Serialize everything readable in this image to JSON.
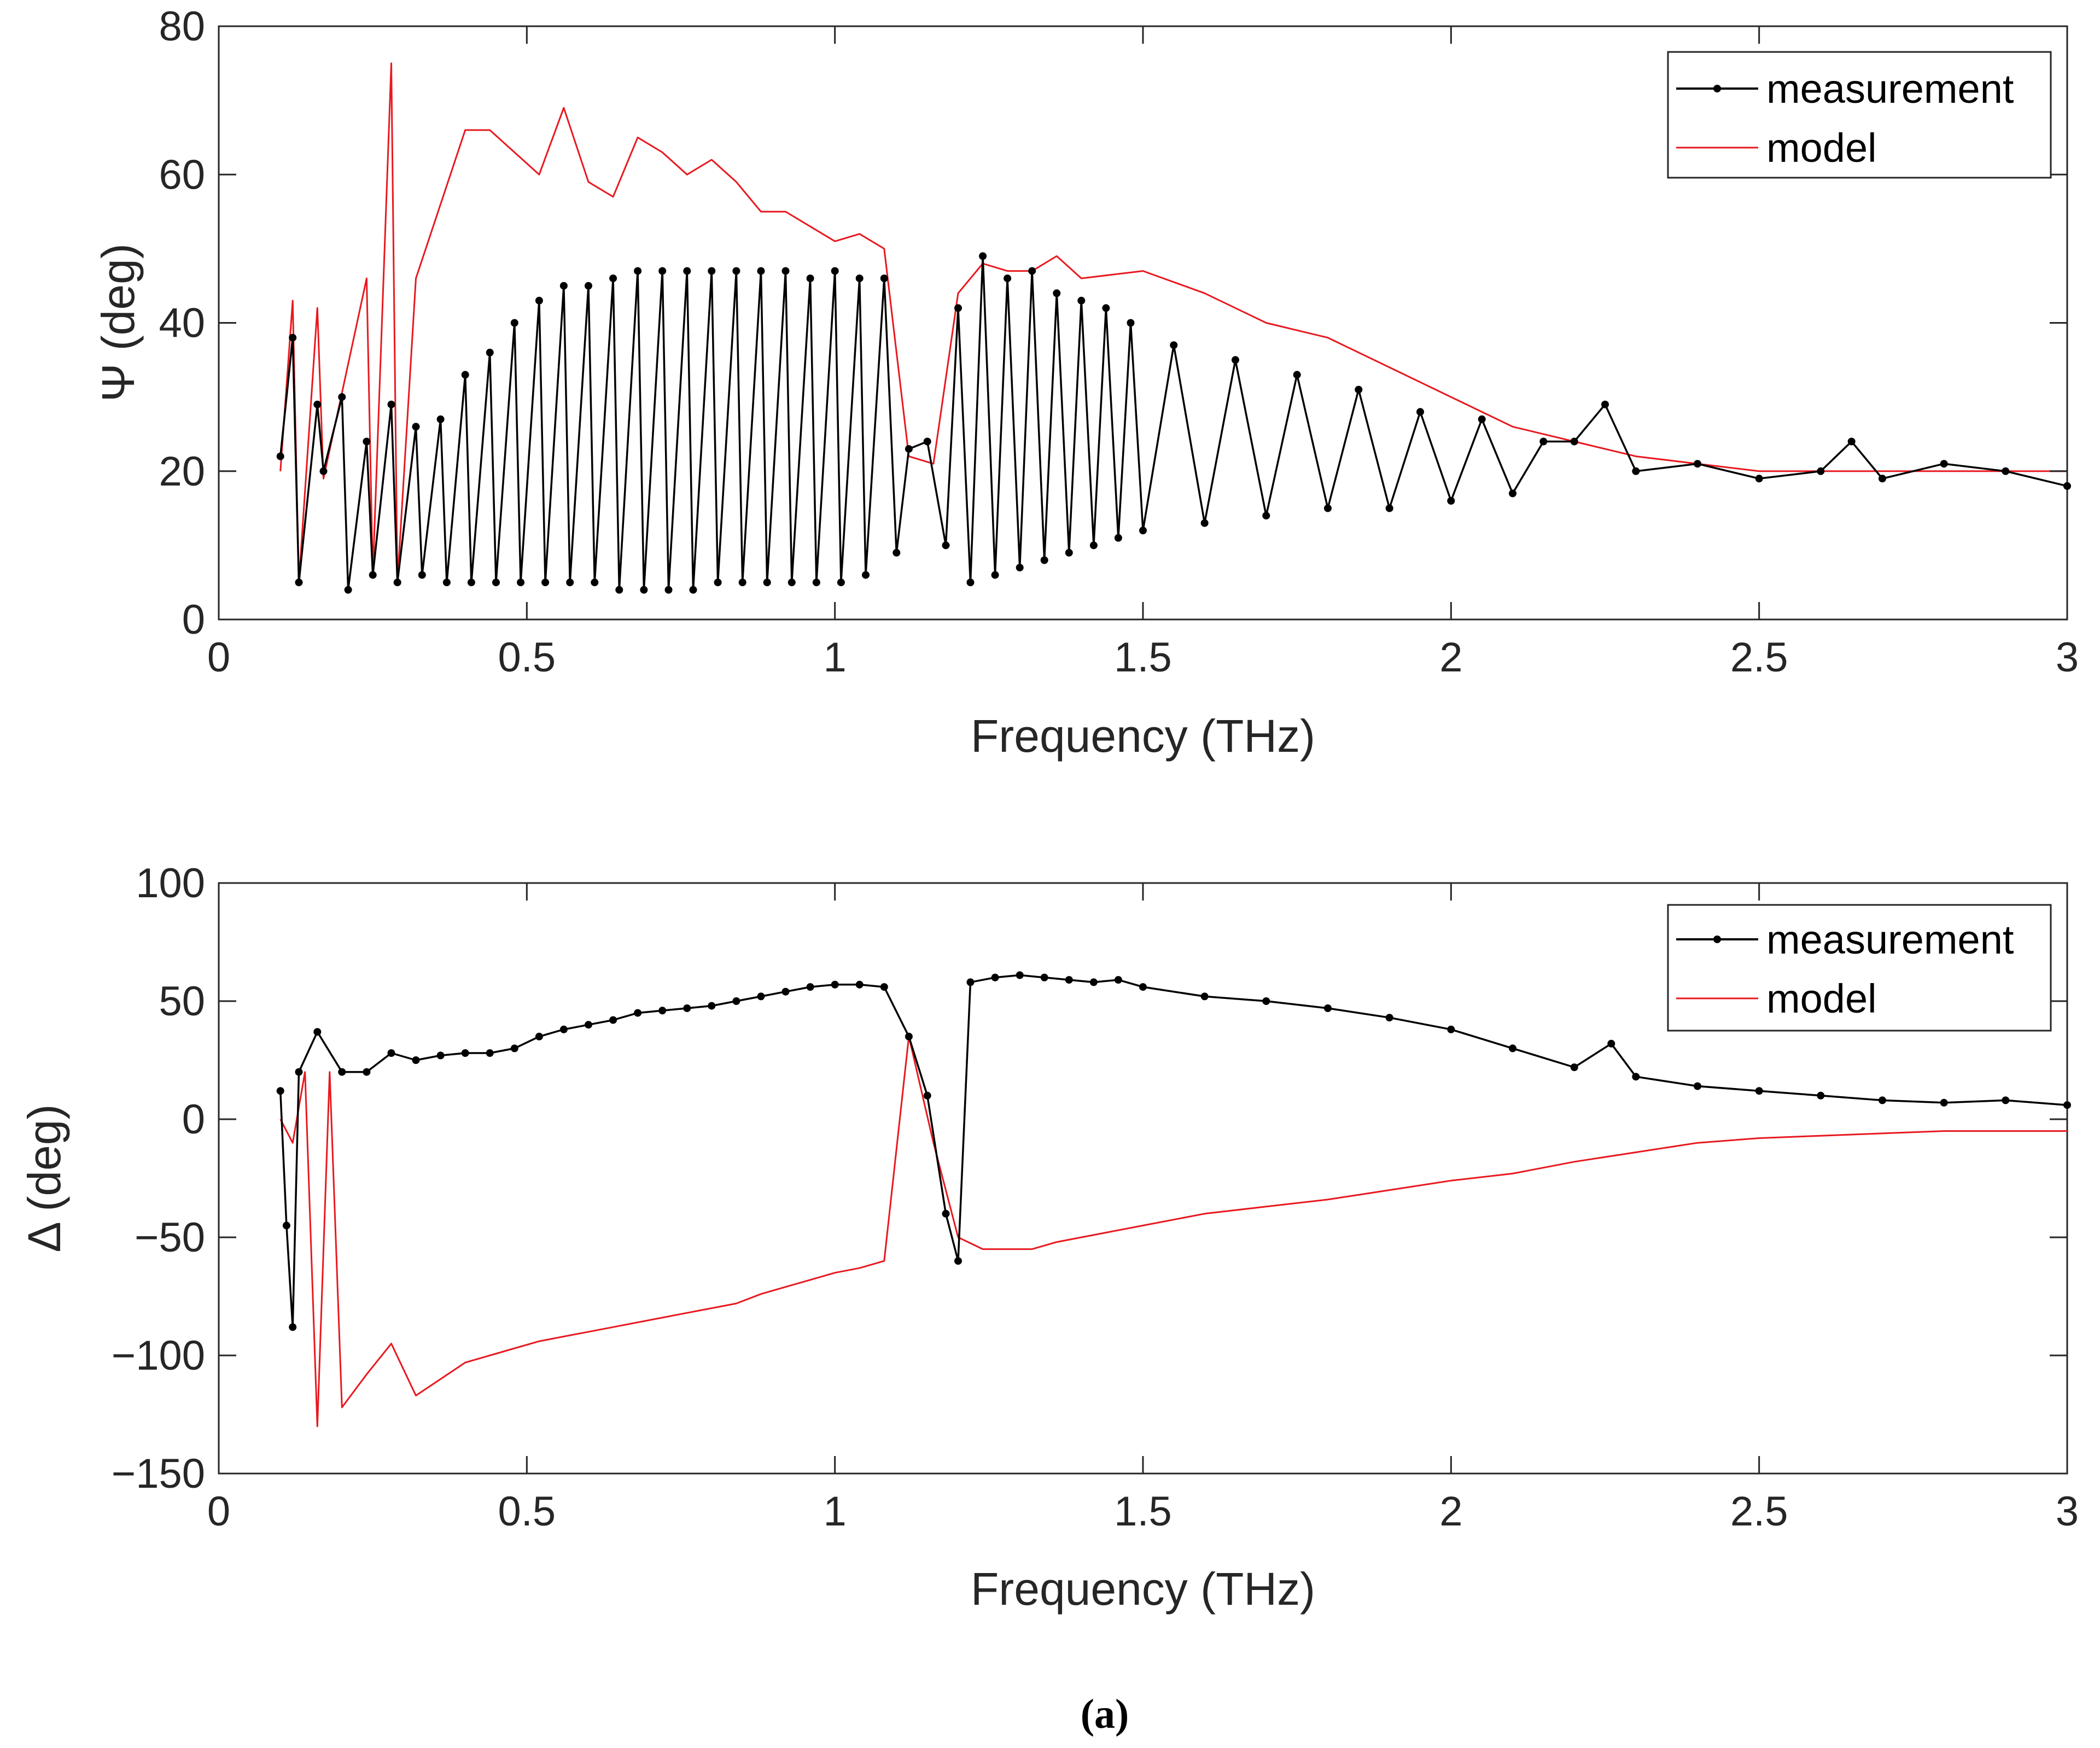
{
  "caption": "(a)",
  "colors": {
    "measurement": "#000000",
    "model": "#e8191f",
    "axis": "#262626",
    "grid": "#f0f0f0"
  },
  "chart_data": [
    {
      "type": "line",
      "title": "",
      "xlabel": "Frequency (THz)",
      "ylabel": "Ψ (deg)",
      "xlim": [
        0,
        3
      ],
      "ylim": [
        0,
        80
      ],
      "xticks": [
        0,
        0.5,
        1,
        1.5,
        2,
        2.5,
        3
      ],
      "xtick_labels": [
        "0",
        "0.5",
        "1",
        "1.5",
        "2",
        "2.5",
        "3"
      ],
      "yticks": [
        0,
        20,
        40,
        60,
        80
      ],
      "ytick_labels": [
        "0",
        "20",
        "40",
        "60",
        "80"
      ],
      "grid": false,
      "legend": {
        "position": "top-right",
        "entries": [
          "measurement",
          "model"
        ]
      },
      "series": [
        {
          "name": "measurement",
          "style": "black line with dot markers",
          "x": [
            0.1,
            0.12,
            0.13,
            0.16,
            0.17,
            0.2,
            0.21,
            0.24,
            0.25,
            0.28,
            0.29,
            0.32,
            0.33,
            0.36,
            0.37,
            0.4,
            0.41,
            0.44,
            0.45,
            0.48,
            0.49,
            0.52,
            0.53,
            0.56,
            0.57,
            0.6,
            0.61,
            0.64,
            0.65,
            0.68,
            0.69,
            0.72,
            0.73,
            0.76,
            0.77,
            0.8,
            0.81,
            0.84,
            0.85,
            0.88,
            0.89,
            0.92,
            0.93,
            0.96,
            0.97,
            1.0,
            1.01,
            1.04,
            1.05,
            1.08,
            1.1,
            1.12,
            1.15,
            1.18,
            1.2,
            1.22,
            1.24,
            1.26,
            1.28,
            1.3,
            1.32,
            1.34,
            1.36,
            1.38,
            1.4,
            1.42,
            1.44,
            1.46,
            1.48,
            1.5,
            1.55,
            1.6,
            1.65,
            1.7,
            1.75,
            1.8,
            1.85,
            1.9,
            1.95,
            2.0,
            2.05,
            2.1,
            2.15,
            2.2,
            2.25,
            2.3,
            2.4,
            2.5,
            2.6,
            2.65,
            2.7,
            2.8,
            2.9,
            3.0
          ],
          "y": [
            22,
            38,
            5,
            29,
            20,
            30,
            4,
            24,
            6,
            29,
            5,
            26,
            6,
            27,
            5,
            33,
            5,
            36,
            5,
            40,
            5,
            43,
            5,
            45,
            5,
            45,
            5,
            46,
            4,
            47,
            4,
            47,
            4,
            47,
            4,
            47,
            5,
            47,
            5,
            47,
            5,
            47,
            5,
            46,
            5,
            47,
            5,
            46,
            6,
            46,
            9,
            23,
            24,
            10,
            42,
            5,
            49,
            6,
            46,
            7,
            47,
            8,
            44,
            9,
            43,
            10,
            42,
            11,
            40,
            12,
            37,
            13,
            35,
            14,
            33,
            15,
            31,
            15,
            28,
            16,
            27,
            17,
            24,
            24,
            29,
            20,
            21,
            19,
            20,
            24,
            19,
            21,
            20,
            18
          ]
        },
        {
          "name": "model",
          "style": "thin red line",
          "x": [
            0.1,
            0.12,
            0.13,
            0.16,
            0.17,
            0.24,
            0.25,
            0.28,
            0.29,
            0.32,
            0.4,
            0.44,
            0.52,
            0.56,
            0.6,
            0.64,
            0.68,
            0.72,
            0.76,
            0.8,
            0.84,
            0.88,
            0.92,
            0.96,
            1.0,
            1.04,
            1.08,
            1.12,
            1.16,
            1.2,
            1.24,
            1.28,
            1.32,
            1.36,
            1.4,
            1.5,
            1.6,
            1.7,
            1.8,
            1.9,
            2.0,
            2.1,
            2.2,
            2.3,
            2.4,
            2.5,
            2.6,
            2.7,
            2.8,
            2.9,
            3.0
          ],
          "y": [
            20,
            43,
            5,
            42,
            19,
            46,
            6,
            75,
            5,
            46,
            66,
            66,
            60,
            69,
            59,
            57,
            65,
            63,
            60,
            62,
            59,
            55,
            55,
            53,
            51,
            52,
            50,
            22,
            21,
            44,
            48,
            47,
            47,
            49,
            46,
            47,
            44,
            40,
            38,
            34,
            30,
            26,
            24,
            22,
            21,
            20,
            20,
            20,
            20,
            20,
            20
          ]
        }
      ]
    },
    {
      "type": "line",
      "title": "",
      "xlabel": "Frequency (THz)",
      "ylabel": "Δ (deg)",
      "xlim": [
        0,
        3
      ],
      "ylim": [
        -150,
        100
      ],
      "xticks": [
        0,
        0.5,
        1,
        1.5,
        2,
        2.5,
        3
      ],
      "xtick_labels": [
        "0",
        "0.5",
        "1",
        "1.5",
        "2",
        "2.5",
        "3"
      ],
      "yticks": [
        -150,
        -100,
        -50,
        0,
        50,
        100
      ],
      "ytick_labels": [
        "−150",
        "−100",
        "−50",
        "0",
        "50",
        "100"
      ],
      "grid": false,
      "legend": {
        "position": "top-right",
        "entries": [
          "measurement",
          "model"
        ]
      },
      "series": [
        {
          "name": "measurement",
          "style": "black line with dot markers",
          "x": [
            0.1,
            0.11,
            0.12,
            0.13,
            0.16,
            0.2,
            0.24,
            0.28,
            0.32,
            0.36,
            0.4,
            0.44,
            0.48,
            0.52,
            0.56,
            0.6,
            0.64,
            0.68,
            0.72,
            0.76,
            0.8,
            0.84,
            0.88,
            0.92,
            0.96,
            1.0,
            1.04,
            1.08,
            1.12,
            1.15,
            1.18,
            1.2,
            1.22,
            1.26,
            1.3,
            1.34,
            1.38,
            1.42,
            1.46,
            1.5,
            1.6,
            1.7,
            1.8,
            1.9,
            2.0,
            2.1,
            2.2,
            2.26,
            2.3,
            2.4,
            2.5,
            2.6,
            2.7,
            2.8,
            2.9,
            3.0
          ],
          "y": [
            12,
            -45,
            -88,
            20,
            37,
            20,
            20,
            28,
            25,
            27,
            28,
            28,
            30,
            35,
            38,
            40,
            42,
            45,
            46,
            47,
            48,
            50,
            52,
            54,
            56,
            57,
            57,
            56,
            35,
            10,
            -40,
            -60,
            58,
            60,
            61,
            60,
            59,
            58,
            59,
            56,
            52,
            50,
            47,
            43,
            38,
            30,
            22,
            32,
            18,
            14,
            12,
            10,
            8,
            7,
            8,
            6
          ]
        },
        {
          "name": "model",
          "style": "thin red line",
          "x": [
            0.1,
            0.12,
            0.14,
            0.16,
            0.18,
            0.2,
            0.24,
            0.28,
            0.32,
            0.36,
            0.4,
            0.44,
            0.48,
            0.52,
            0.56,
            0.6,
            0.64,
            0.68,
            0.72,
            0.76,
            0.8,
            0.84,
            0.88,
            0.92,
            0.96,
            1.0,
            1.04,
            1.08,
            1.12,
            1.16,
            1.2,
            1.24,
            1.28,
            1.32,
            1.36,
            1.4,
            1.5,
            1.6,
            1.7,
            1.8,
            1.9,
            2.0,
            2.1,
            2.2,
            2.3,
            2.4,
            2.5,
            2.6,
            2.7,
            2.8,
            2.9,
            3.0
          ],
          "y": [
            0,
            -10,
            20,
            -130,
            20,
            -122,
            -108,
            -95,
            -117,
            -110,
            -103,
            -100,
            -97,
            -94,
            -92,
            -90,
            -88,
            -86,
            -84,
            -82,
            -80,
            -78,
            -74,
            -71,
            -68,
            -65,
            -63,
            -60,
            35,
            -10,
            -50,
            -55,
            -55,
            -55,
            -52,
            -50,
            -45,
            -40,
            -37,
            -34,
            -30,
            -26,
            -23,
            -18,
            -14,
            -10,
            -8,
            -7,
            -6,
            -5,
            -5,
            -5
          ]
        }
      ]
    }
  ]
}
